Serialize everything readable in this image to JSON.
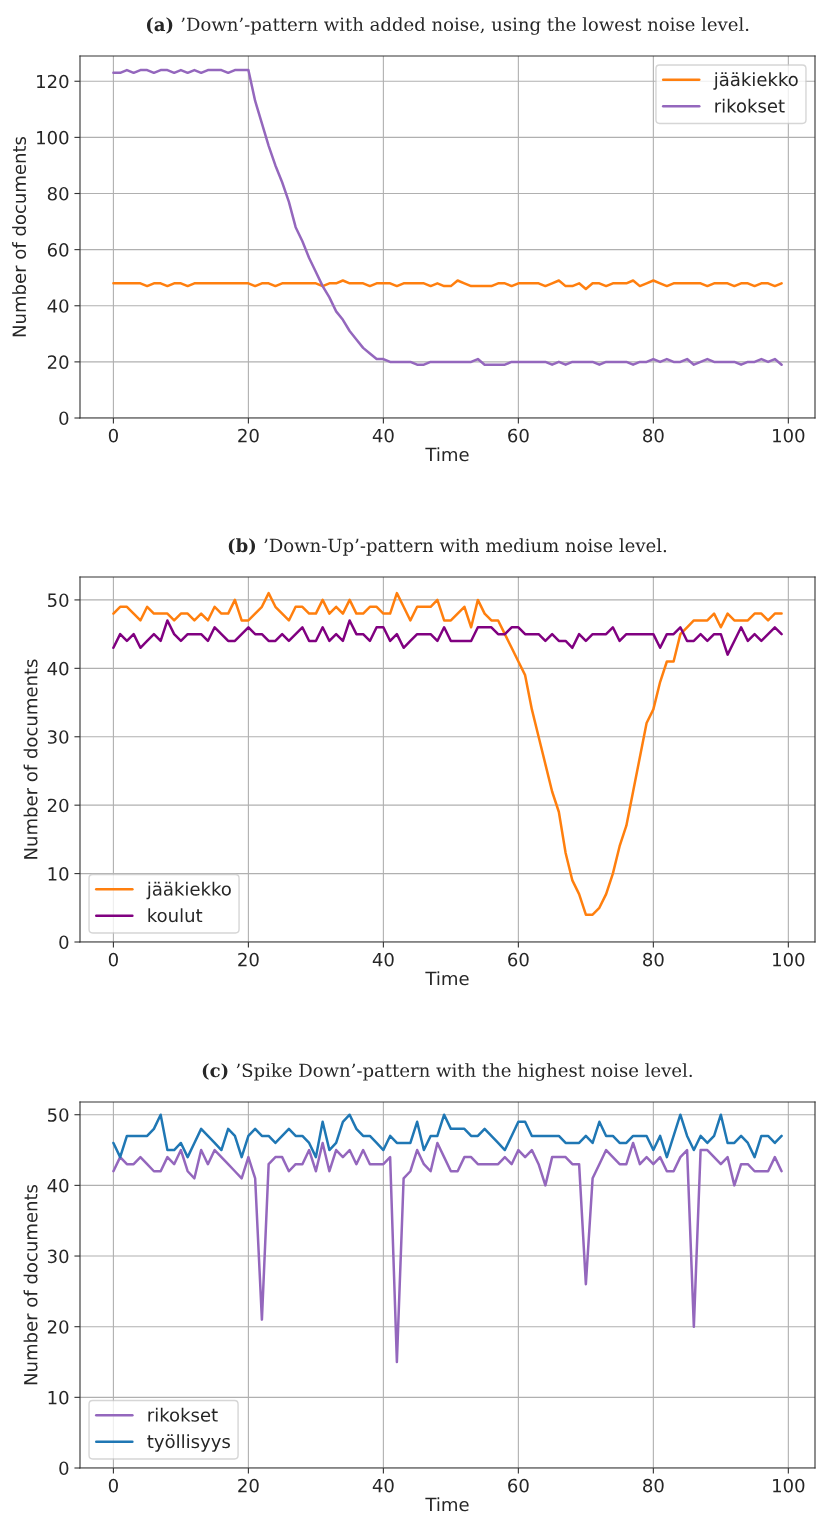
{
  "chart_data": [
    {
      "type": "line",
      "title": "(a) ’Down’-pattern with added noise, using the lowest noise level.",
      "xlabel": "Time",
      "ylabel": "Number of documents",
      "xlim": [
        -4.95,
        103.95
      ],
      "ylim": [
        0,
        129
      ],
      "xticks": [
        0,
        20,
        40,
        60,
        80,
        100
      ],
      "yticks": [
        0,
        20,
        40,
        60,
        80,
        100,
        120
      ],
      "grid": true,
      "legend": "top right",
      "x": [
        0,
        1,
        2,
        3,
        4,
        5,
        6,
        7,
        8,
        9,
        10,
        11,
        12,
        13,
        14,
        15,
        16,
        17,
        18,
        19,
        20,
        21,
        22,
        23,
        24,
        25,
        26,
        27,
        28,
        29,
        30,
        31,
        32,
        33,
        34,
        35,
        36,
        37,
        38,
        39,
        40,
        41,
        42,
        43,
        44,
        45,
        46,
        47,
        48,
        49,
        50,
        51,
        52,
        53,
        54,
        55,
        56,
        57,
        58,
        59,
        60,
        61,
        62,
        63,
        64,
        65,
        66,
        67,
        68,
        69,
        70,
        71,
        72,
        73,
        74,
        75,
        76,
        77,
        78,
        79,
        80,
        81,
        82,
        83,
        84,
        85,
        86,
        87,
        88,
        89,
        90,
        91,
        92,
        93,
        94,
        95,
        96,
        97,
        98,
        99
      ],
      "series": [
        {
          "name": "jääkiekko",
          "color": "#ff7f0e",
          "values": [
            48,
            48,
            48,
            48,
            48,
            47,
            48,
            48,
            47,
            48,
            48,
            47,
            48,
            48,
            48,
            48,
            48,
            48,
            48,
            48,
            48,
            47,
            48,
            48,
            47,
            48,
            48,
            48,
            48,
            48,
            48,
            47,
            48,
            48,
            49,
            48,
            48,
            48,
            47,
            48,
            48,
            48,
            47,
            48,
            48,
            48,
            48,
            47,
            48,
            47,
            47,
            49,
            48,
            47,
            47,
            47,
            47,
            48,
            48,
            47,
            48,
            48,
            48,
            48,
            47,
            48,
            49,
            47,
            47,
            48,
            46,
            48,
            48,
            47,
            48,
            48,
            48,
            49,
            47,
            48,
            49,
            48,
            47,
            48,
            48,
            48,
            48,
            48,
            47,
            48,
            48,
            48,
            47,
            48,
            48,
            47,
            48,
            48,
            47,
            48
          ]
        },
        {
          "name": "rikokset",
          "color": "#9467bd",
          "values": [
            123,
            123,
            124,
            123,
            124,
            124,
            123,
            124,
            124,
            123,
            124,
            123,
            124,
            123,
            124,
            124,
            124,
            123,
            124,
            124,
            124,
            113,
            105,
            97,
            90,
            84,
            77,
            68,
            63,
            57,
            52,
            47,
            43,
            38,
            35,
            31,
            28,
            25,
            23,
            21,
            21,
            20,
            20,
            20,
            20,
            19,
            19,
            20,
            20,
            20,
            20,
            20,
            20,
            20,
            21,
            19,
            19,
            19,
            19,
            20,
            20,
            20,
            20,
            20,
            20,
            19,
            20,
            19,
            20,
            20,
            20,
            20,
            19,
            20,
            20,
            20,
            20,
            19,
            20,
            20,
            21,
            20,
            21,
            20,
            20,
            21,
            19,
            20,
            21,
            20,
            20,
            20,
            20,
            19,
            20,
            20,
            21,
            20,
            21,
            19
          ]
        }
      ]
    },
    {
      "type": "line",
      "title": "(b) ’Down-Up’-pattern with medium noise level.",
      "xlabel": "Time",
      "ylabel": "Number of documents",
      "xlim": [
        -4.95,
        103.95
      ],
      "ylim": [
        0,
        53.35
      ],
      "xticks": [
        0,
        20,
        40,
        60,
        80,
        100
      ],
      "yticks": [
        0,
        10,
        20,
        30,
        40,
        50
      ],
      "grid": true,
      "legend": "bottom left",
      "x": [
        0,
        1,
        2,
        3,
        4,
        5,
        6,
        7,
        8,
        9,
        10,
        11,
        12,
        13,
        14,
        15,
        16,
        17,
        18,
        19,
        20,
        21,
        22,
        23,
        24,
        25,
        26,
        27,
        28,
        29,
        30,
        31,
        32,
        33,
        34,
        35,
        36,
        37,
        38,
        39,
        40,
        41,
        42,
        43,
        44,
        45,
        46,
        47,
        48,
        49,
        50,
        51,
        52,
        53,
        54,
        55,
        56,
        57,
        58,
        59,
        60,
        61,
        62,
        63,
        64,
        65,
        66,
        67,
        68,
        69,
        70,
        71,
        72,
        73,
        74,
        75,
        76,
        77,
        78,
        79,
        80,
        81,
        82,
        83,
        84,
        85,
        86,
        87,
        88,
        89,
        90,
        91,
        92,
        93,
        94,
        95,
        96,
        97,
        98,
        99
      ],
      "series": [
        {
          "name": "jääkiekko",
          "color": "#ff7f0e",
          "values": [
            48,
            49,
            49,
            48,
            47,
            49,
            48,
            48,
            48,
            47,
            48,
            48,
            47,
            48,
            47,
            49,
            48,
            48,
            50,
            47,
            47,
            48,
            49,
            51,
            49,
            48,
            47,
            49,
            49,
            48,
            48,
            50,
            48,
            49,
            48,
            50,
            48,
            48,
            49,
            49,
            48,
            48,
            51,
            49,
            47,
            49,
            49,
            49,
            50,
            47,
            47,
            48,
            49,
            46,
            50,
            48,
            47,
            47,
            45,
            43,
            41,
            39,
            34,
            30,
            26,
            22,
            19,
            13,
            9,
            7,
            4,
            4,
            5,
            7,
            10,
            14,
            17,
            22,
            27,
            32,
            34,
            38,
            41,
            41,
            45,
            46,
            47,
            47,
            47,
            48,
            46,
            48,
            47,
            47,
            47,
            48,
            48,
            47,
            48,
            48
          ]
        },
        {
          "name": "koulut",
          "color": "#800080",
          "values": [
            43,
            45,
            44,
            45,
            43,
            44,
            45,
            44,
            47,
            45,
            44,
            45,
            45,
            45,
            44,
            46,
            45,
            44,
            44,
            45,
            46,
            45,
            45,
            44,
            44,
            45,
            44,
            45,
            46,
            44,
            44,
            46,
            44,
            45,
            44,
            47,
            45,
            45,
            44,
            46,
            46,
            44,
            45,
            43,
            44,
            45,
            45,
            45,
            44,
            46,
            44,
            44,
            44,
            44,
            46,
            46,
            46,
            45,
            45,
            46,
            46,
            45,
            45,
            45,
            44,
            45,
            44,
            44,
            43,
            45,
            44,
            45,
            45,
            45,
            46,
            44,
            45,
            45,
            45,
            45,
            45,
            43,
            45,
            45,
            46,
            44,
            44,
            45,
            44,
            45,
            45,
            42,
            44,
            46,
            44,
            45,
            44,
            45,
            46,
            45
          ]
        }
      ]
    },
    {
      "type": "line",
      "title": "(c) ’Spike Down’-pattern with the highest noise level.",
      "xlabel": "Time",
      "ylabel": "Number of documents",
      "xlim": [
        -4.95,
        103.95
      ],
      "ylim": [
        0,
        51.8
      ],
      "xticks": [
        0,
        20,
        40,
        60,
        80,
        100
      ],
      "yticks": [
        0,
        10,
        20,
        30,
        40,
        50
      ],
      "grid": true,
      "legend": "bottom left",
      "x": [
        0,
        1,
        2,
        3,
        4,
        5,
        6,
        7,
        8,
        9,
        10,
        11,
        12,
        13,
        14,
        15,
        16,
        17,
        18,
        19,
        20,
        21,
        22,
        23,
        24,
        25,
        26,
        27,
        28,
        29,
        30,
        31,
        32,
        33,
        34,
        35,
        36,
        37,
        38,
        39,
        40,
        41,
        42,
        43,
        44,
        45,
        46,
        47,
        48,
        49,
        50,
        51,
        52,
        53,
        54,
        55,
        56,
        57,
        58,
        59,
        60,
        61,
        62,
        63,
        64,
        65,
        66,
        67,
        68,
        69,
        70,
        71,
        72,
        73,
        74,
        75,
        76,
        77,
        78,
        79,
        80,
        81,
        82,
        83,
        84,
        85,
        86,
        87,
        88,
        89,
        90,
        91,
        92,
        93,
        94,
        95,
        96,
        97,
        98,
        99
      ],
      "series": [
        {
          "name": "rikokset",
          "color": "#9467bd",
          "values": [
            42,
            44,
            43,
            43,
            44,
            43,
            42,
            42,
            44,
            43,
            45,
            42,
            41,
            45,
            43,
            45,
            44,
            43,
            42,
            41,
            44,
            41,
            21,
            43,
            44,
            44,
            42,
            43,
            43,
            45,
            42,
            46,
            42,
            45,
            44,
            45,
            43,
            45,
            43,
            43,
            43,
            44,
            15,
            41,
            42,
            45,
            43,
            42,
            46,
            44,
            42,
            42,
            44,
            44,
            43,
            43,
            43,
            43,
            44,
            43,
            45,
            44,
            45,
            43,
            40,
            44,
            44,
            44,
            43,
            43,
            26,
            41,
            43,
            45,
            44,
            43,
            43,
            46,
            43,
            44,
            43,
            44,
            42,
            42,
            44,
            45,
            20,
            45,
            45,
            44,
            43,
            44,
            40,
            43,
            43,
            42,
            42,
            42,
            44,
            42
          ]
        },
        {
          "name": "työllisyys",
          "color": "#1f77b4",
          "values": [
            46,
            44,
            47,
            47,
            47,
            47,
            48,
            50,
            45,
            45,
            46,
            44,
            46,
            48,
            47,
            46,
            45,
            48,
            47,
            44,
            47,
            48,
            47,
            47,
            46,
            47,
            48,
            47,
            47,
            46,
            44,
            49,
            45,
            46,
            49,
            50,
            48,
            47,
            47,
            46,
            45,
            47,
            46,
            46,
            46,
            49,
            45,
            47,
            47,
            50,
            48,
            48,
            48,
            47,
            47,
            48,
            47,
            46,
            45,
            47,
            49,
            49,
            47,
            47,
            47,
            47,
            47,
            46,
            46,
            46,
            47,
            46,
            49,
            47,
            47,
            46,
            46,
            47,
            47,
            47,
            45,
            47,
            44,
            47,
            50,
            47,
            45,
            47,
            46,
            47,
            50,
            46,
            46,
            47,
            46,
            44,
            47,
            47,
            46,
            47
          ]
        }
      ]
    }
  ]
}
